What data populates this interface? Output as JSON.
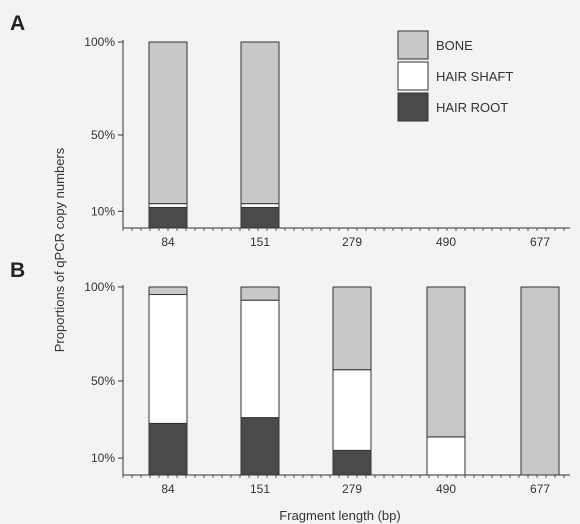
{
  "figure": {
    "ylabel": "Proportions of qPCR copy numbers",
    "xlabel": "Fragment length (bp)"
  },
  "legend": {
    "items": [
      {
        "label": "BONE",
        "color": "#c8c8c8"
      },
      {
        "label": "HAIR SHAFT",
        "color": "#ffffff"
      },
      {
        "label": "HAIR ROOT",
        "color": "#4a4a4a"
      }
    ]
  },
  "chart_data": [
    {
      "type": "bar",
      "panel": "A",
      "stacked": true,
      "categories": [
        "84",
        "151",
        "279",
        "490",
        "677"
      ],
      "yticks": [
        "10%",
        "50%",
        "100%"
      ],
      "series": [
        {
          "name": "HAIR ROOT",
          "color": "#4a4a4a",
          "values": [
            0.12,
            0.12,
            0,
            0,
            0
          ]
        },
        {
          "name": "HAIR SHAFT",
          "color": "#ffffff",
          "values": [
            0.02,
            0.02,
            0,
            0,
            0
          ]
        },
        {
          "name": "BONE",
          "color": "#c8c8c8",
          "values": [
            0.86,
            0.86,
            0,
            0,
            0
          ]
        }
      ]
    },
    {
      "type": "bar",
      "panel": "B",
      "stacked": true,
      "categories": [
        "84",
        "151",
        "279",
        "490",
        "677"
      ],
      "yticks": [
        "10%",
        "50%",
        "100%"
      ],
      "series": [
        {
          "name": "HAIR ROOT",
          "color": "#4a4a4a",
          "values": [
            0.28,
            0.31,
            0.14,
            0,
            0
          ]
        },
        {
          "name": "HAIR SHAFT",
          "color": "#ffffff",
          "values": [
            0.68,
            0.62,
            0.42,
            0.21,
            0
          ]
        },
        {
          "name": "BONE",
          "color": "#c8c8c8",
          "values": [
            0.04,
            0.07,
            0.44,
            0.79,
            1.0
          ]
        }
      ]
    }
  ]
}
